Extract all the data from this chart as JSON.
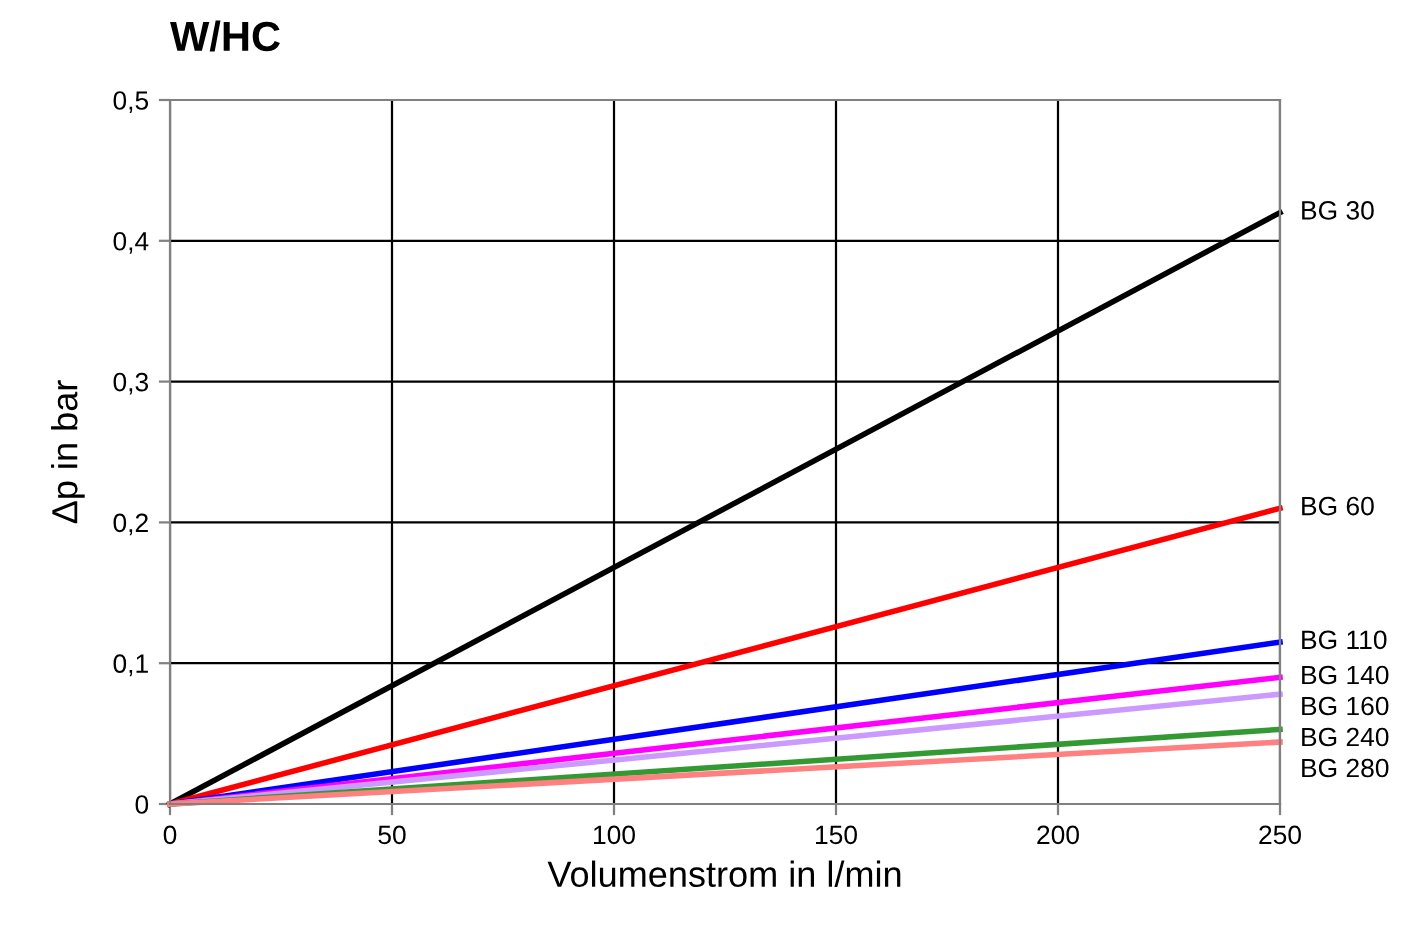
{
  "chart_data": {
    "type": "line",
    "title": "W/HC",
    "xlabel": "Volumenstrom in l/min",
    "ylabel": "Δp in bar",
    "x": [
      0,
      250
    ],
    "xlim": [
      0,
      250
    ],
    "xticks": [
      0,
      50,
      100,
      150,
      200,
      250
    ],
    "ylim": [
      0,
      0.5
    ],
    "yticks": [
      {
        "value": 0,
        "label": "0"
      },
      {
        "value": 0.1,
        "label": "0,1"
      },
      {
        "value": 0.2,
        "label": "0,2"
      },
      {
        "value": 0.3,
        "label": "0,3"
      },
      {
        "value": 0.4,
        "label": "0,4"
      },
      {
        "value": 0.5,
        "label": "0,5"
      }
    ],
    "grid": true,
    "legend": false,
    "marker": "none",
    "line_style": "solid",
    "series": [
      {
        "name": "BG 30",
        "color": "#000000",
        "values": [
          0,
          0.42
        ]
      },
      {
        "name": "BG 60",
        "color": "#ff0000",
        "values": [
          0,
          0.21
        ]
      },
      {
        "name": "BG 110",
        "color": "#0000ff",
        "values": [
          0,
          0.115
        ]
      },
      {
        "name": "BG 140",
        "color": "#ff00ff",
        "values": [
          0,
          0.09
        ]
      },
      {
        "name": "BG 160",
        "color": "#cc99ff",
        "values": [
          0,
          0.078
        ]
      },
      {
        "name": "BG 240",
        "color": "#339933",
        "values": [
          0,
          0.053
        ]
      },
      {
        "name": "BG 280",
        "color": "#ff8080",
        "values": [
          0,
          0.044
        ]
      }
    ]
  }
}
